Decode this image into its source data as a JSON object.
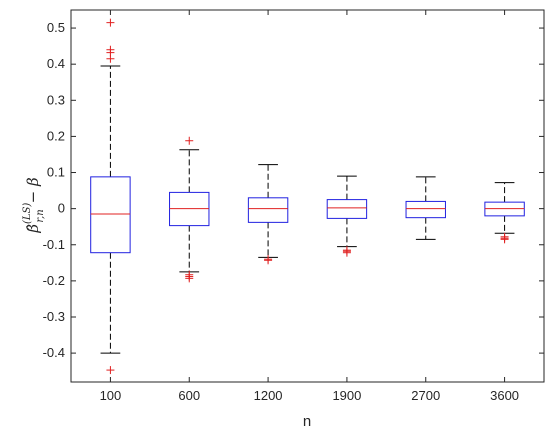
{
  "chart_data": {
    "type": "boxplot",
    "xlabel": "n",
    "ylabel": {
      "base": "β̂",
      "superscript": "(LS)",
      "subscript": "r,n",
      "suffix": "− β"
    },
    "ylim": [
      -0.48,
      0.55
    ],
    "yticks": [
      -0.4,
      -0.3,
      -0.2,
      -0.1,
      0,
      0.1,
      0.2,
      0.3,
      0.4,
      0.5
    ],
    "ytick_labels": [
      "-0.4",
      "-0.3",
      "-0.2",
      "-0.1",
      "0",
      "0.1",
      "0.2",
      "0.3",
      "0.4",
      "0.5"
    ],
    "categories": [
      "100",
      "600",
      "1200",
      "1900",
      "2700",
      "3600"
    ],
    "boxes": [
      {
        "category": "100",
        "q1": -0.122,
        "median": -0.015,
        "q3": 0.088,
        "whisker_low": -0.4,
        "whisker_high": 0.395,
        "outliers": [
          0.515,
          0.44,
          0.432,
          0.415,
          -0.447
        ]
      },
      {
        "category": "600",
        "q1": -0.047,
        "median": 0.0,
        "q3": 0.045,
        "whisker_low": -0.175,
        "whisker_high": 0.163,
        "outliers": [
          0.188,
          -0.183,
          -0.188,
          -0.193
        ]
      },
      {
        "category": "1200",
        "q1": -0.038,
        "median": 0.0,
        "q3": 0.03,
        "whisker_low": -0.135,
        "whisker_high": 0.122,
        "outliers": [
          -0.14,
          -0.143
        ]
      },
      {
        "category": "1900",
        "q1": -0.027,
        "median": 0.002,
        "q3": 0.025,
        "whisker_low": -0.105,
        "whisker_high": 0.09,
        "outliers": [
          -0.115,
          -0.118,
          -0.122
        ]
      },
      {
        "category": "2700",
        "q1": -0.025,
        "median": 0.0,
        "q3": 0.02,
        "whisker_low": -0.085,
        "whisker_high": 0.088,
        "outliers": []
      },
      {
        "category": "3600",
        "q1": -0.02,
        "median": 0.0,
        "q3": 0.018,
        "whisker_low": -0.068,
        "whisker_high": 0.072,
        "outliers": [
          -0.078,
          -0.082,
          -0.085
        ]
      }
    ],
    "grid": false,
    "colors": {
      "box": "#2020e0",
      "median": "#e02020",
      "whisker": "#000000",
      "outlier": "#e02020",
      "axes": "#262626"
    }
  }
}
